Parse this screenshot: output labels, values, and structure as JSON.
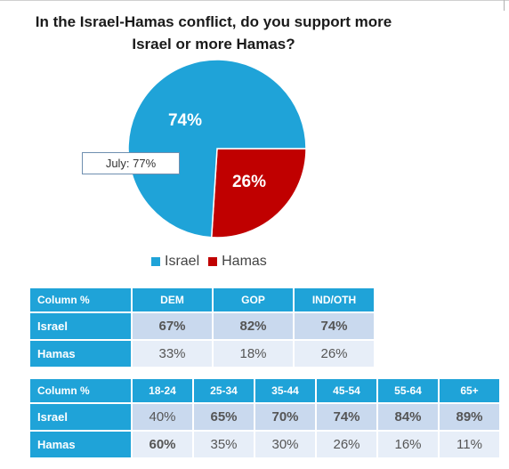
{
  "chart_data": [
    {
      "type": "pie",
      "title": "In the Israel-Hamas conflict, do you support more Israel or more Hamas?",
      "categories": [
        "Israel",
        "Hamas"
      ],
      "values": [
        74,
        26
      ],
      "slice_labels": [
        "74%",
        "26%"
      ],
      "colors": [
        "#1fa3d8",
        "#c00000"
      ],
      "annotation": "July: 77%",
      "legend_position": "bottom"
    },
    {
      "type": "table",
      "corner_label": "Column %",
      "columns": [
        "DEM",
        "GOP",
        "IND/OTH"
      ],
      "rows": [
        {
          "label": "Israel",
          "values": [
            "67%",
            "82%",
            "74%"
          ],
          "bold": [
            true,
            true,
            true
          ]
        },
        {
          "label": "Hamas",
          "values": [
            "33%",
            "18%",
            "26%"
          ],
          "bold": [
            false,
            false,
            false
          ]
        }
      ]
    },
    {
      "type": "table",
      "corner_label": "Column %",
      "columns": [
        "18-24",
        "25-34",
        "35-44",
        "45-54",
        "55-64",
        "65+"
      ],
      "rows": [
        {
          "label": "Israel",
          "values": [
            "40%",
            "65%",
            "70%",
            "74%",
            "84%",
            "89%"
          ],
          "bold": [
            false,
            true,
            true,
            true,
            true,
            true
          ]
        },
        {
          "label": "Hamas",
          "values": [
            "60%",
            "35%",
            "30%",
            "26%",
            "16%",
            "11%"
          ],
          "bold": [
            true,
            false,
            false,
            false,
            false,
            false
          ]
        }
      ]
    }
  ]
}
